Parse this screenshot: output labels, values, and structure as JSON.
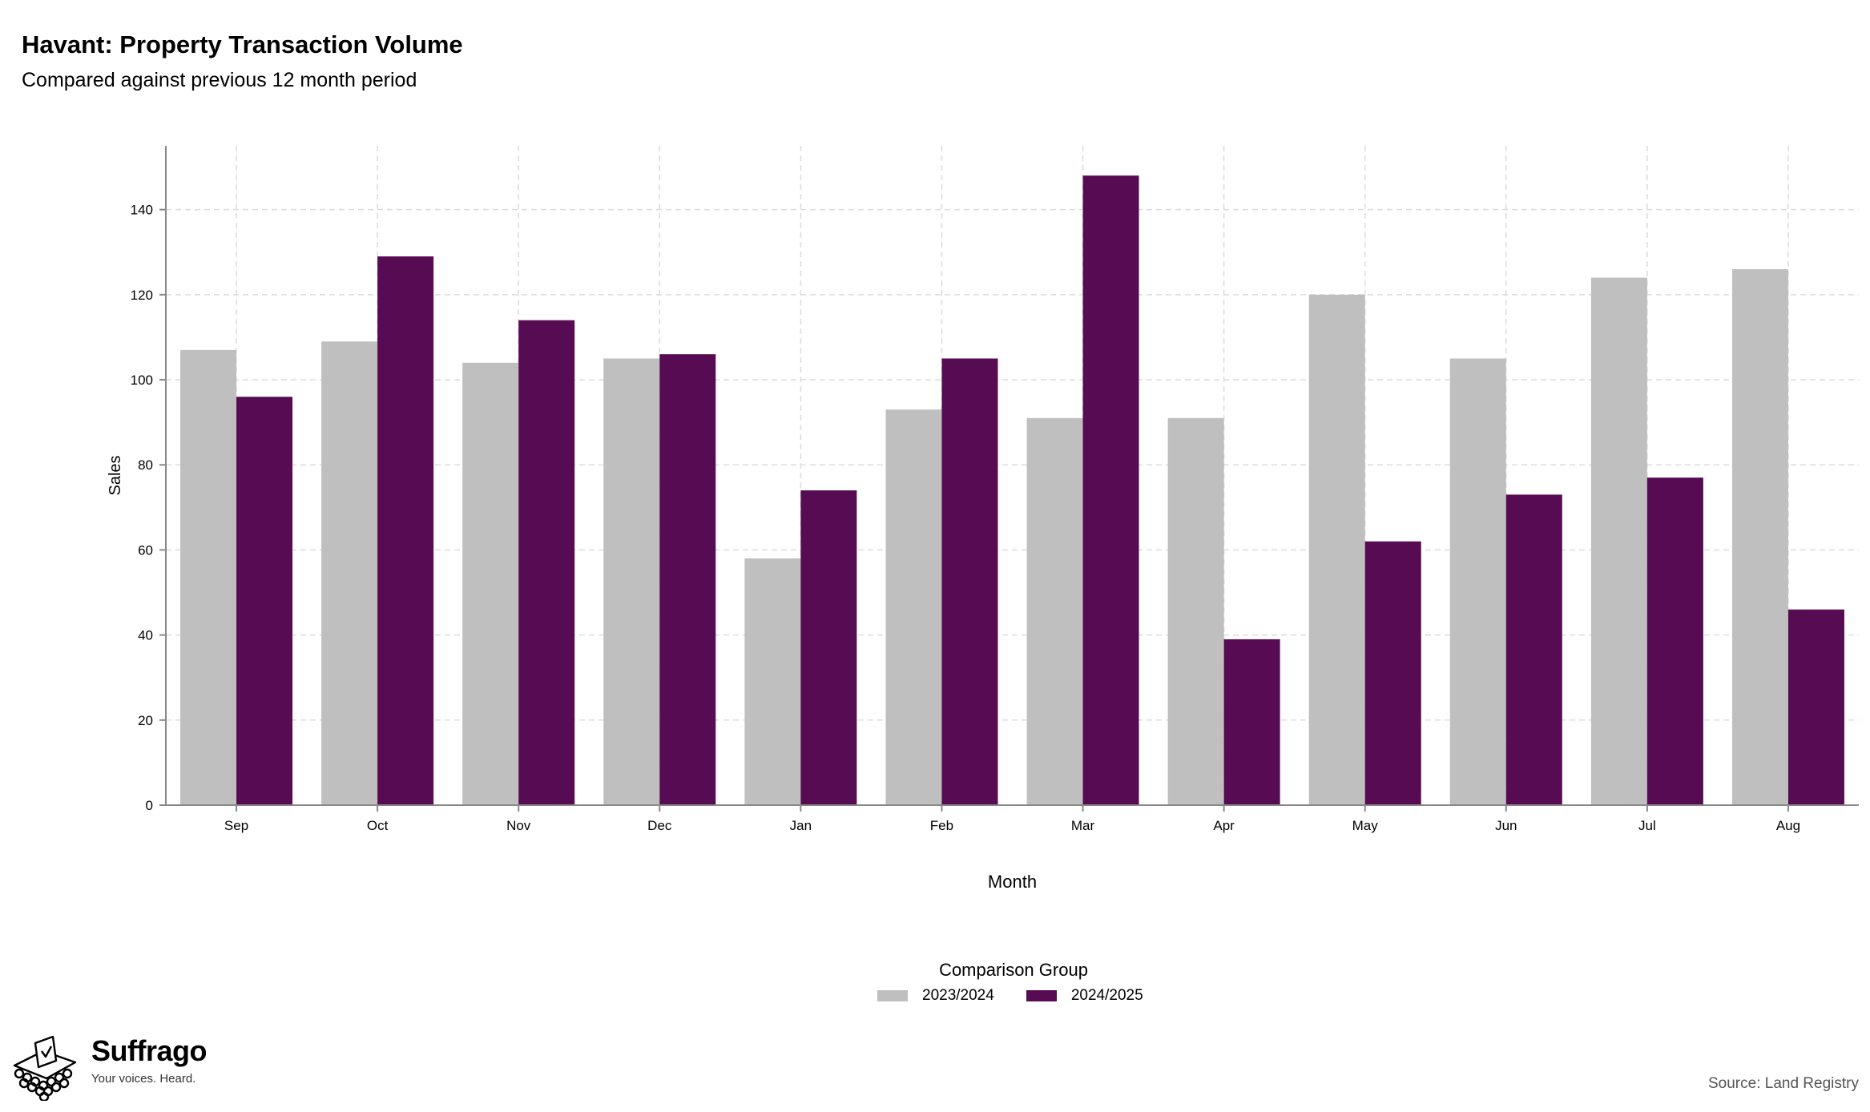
{
  "chart_data": {
    "type": "bar",
    "title": "Havant: Property Transaction Volume",
    "subtitle": "Compared against previous 12 month period",
    "xlabel": "Month",
    "ylabel": "Sales",
    "ylim": [
      0,
      155
    ],
    "yticks": [
      0,
      20,
      40,
      60,
      80,
      100,
      120,
      140
    ],
    "grid": true,
    "legend_title": "Comparison Group",
    "legend_position": "bottom",
    "categories": [
      "Sep",
      "Oct",
      "Nov",
      "Dec",
      "Jan",
      "Feb",
      "Mar",
      "Apr",
      "May",
      "Jun",
      "Jul",
      "Aug"
    ],
    "series": [
      {
        "name": "2023/2024",
        "color": "#bfbfbf",
        "values": [
          107,
          109,
          104,
          105,
          58,
          93,
          91,
          91,
          120,
          105,
          124,
          126
        ]
      },
      {
        "name": "2024/2025",
        "color": "#560b52",
        "values": [
          96,
          129,
          114,
          106,
          74,
          105,
          148,
          39,
          62,
          73,
          77,
          46
        ]
      }
    ]
  },
  "footer": {
    "source": "Source: Land Registry",
    "brand_name": "Suffrago",
    "brand_tagline": "Your voices. Heard.",
    "logo_icon": "ballot-box-icon"
  }
}
